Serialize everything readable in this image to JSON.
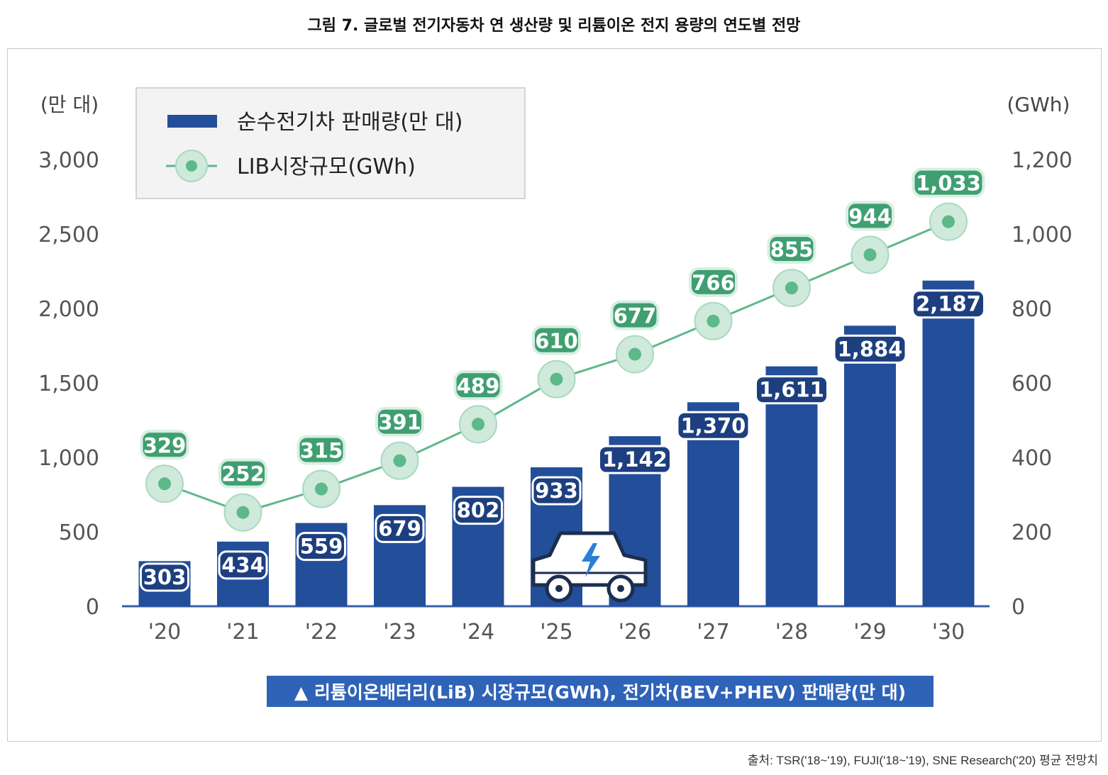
{
  "figure_title": "그림 7. 글로벌 전기자동차 연 생산량 및 리튬이온 전지 용량의 연도별 전망",
  "source": "출처: TSR('18~'19), FUJI('18~'19), SNE Research('20) 평균 전망치",
  "banner": "▲ 리튬이온배터리(LiB) 시장규모(GWh), 전기차(BEV+PHEV) 판매량(만 대)",
  "colors": {
    "bar": "#234e99",
    "line": "#5db88a",
    "marker_ring": "#cfe9db",
    "label_bg": "#3f9f71",
    "bar_label_bg": "#1d3f7f"
  },
  "chart_data": {
    "type": "bar+line",
    "categories": [
      "'20",
      "'21",
      "'22",
      "'23",
      "'24",
      "'25",
      "'26",
      "'27",
      "'28",
      "'29",
      "'30"
    ],
    "series": [
      {
        "name": "순수전기차 판매량(만 대)",
        "type": "bar",
        "axis": "left",
        "values": [
          303,
          434,
          559,
          679,
          802,
          933,
          1142,
          1370,
          1611,
          1884,
          2187
        ],
        "labels": [
          "303",
          "434",
          "559",
          "679",
          "802",
          "933",
          "1,142",
          "1,370",
          "1,611",
          "1,884",
          "2,187"
        ]
      },
      {
        "name": "LIB시장규모(GWh)",
        "type": "line",
        "axis": "right",
        "values": [
          329,
          252,
          315,
          391,
          489,
          610,
          677,
          766,
          855,
          944,
          1033
        ],
        "labels": [
          "329",
          "252",
          "315",
          "391",
          "489",
          "610",
          "677",
          "766",
          "855",
          "944",
          "1,033"
        ]
      }
    ],
    "y_left": {
      "unit": "(만 대)",
      "ylim": [
        0,
        3000
      ],
      "ticks": [
        "0",
        "500",
        "1,000",
        "1,500",
        "2,000",
        "2,500",
        "3,000"
      ]
    },
    "y_right": {
      "unit": "(GWh)",
      "ylim": [
        0,
        1200
      ],
      "ticks": [
        "0",
        "200",
        "400",
        "600",
        "800",
        "1,000",
        "1,200"
      ]
    },
    "legend_position": "top-left",
    "grid": false
  }
}
